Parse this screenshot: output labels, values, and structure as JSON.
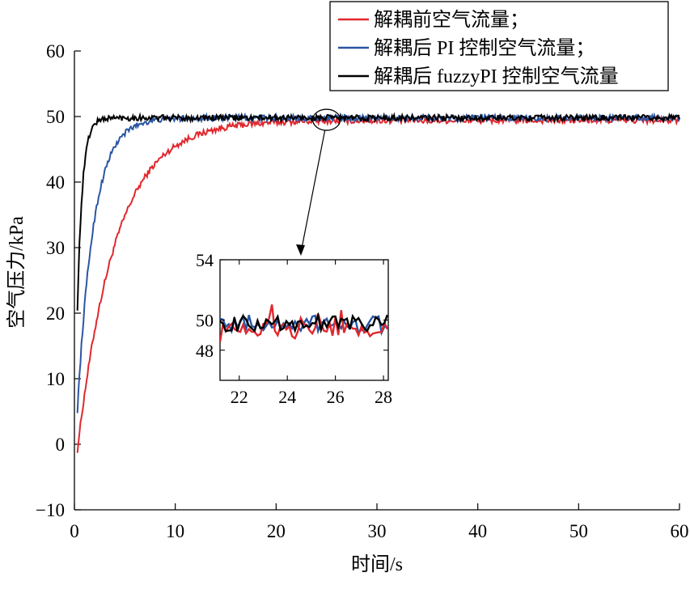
{
  "chart_data": [
    {
      "type": "line",
      "xlabel": "时间/s",
      "ylabel": "空气压力/kPa",
      "xlim": [
        0,
        60
      ],
      "ylim": [
        -10,
        60
      ],
      "xticks": [
        "0",
        "10",
        "20",
        "30",
        "40",
        "50",
        "60"
      ],
      "yticks": [
        "−10",
        "0",
        "10",
        "20",
        "30",
        "40",
        "50",
        "60"
      ],
      "grid": false,
      "legend_position": "top-right",
      "series": [
        {
          "name": "解耦前空气流量；",
          "color": "#e0282e",
          "setpoint": 49.4,
          "start": -5,
          "tau": 3.8,
          "noise": 0.45
        },
        {
          "name": "解耦后 PI 控制空气流量；",
          "color": "#2a56a3",
          "setpoint": 49.8,
          "start": -4,
          "tau": 1.6,
          "noise": 0.45
        },
        {
          "name": "解耦后 fuzzyPI 控制空气流量",
          "color": "#000000",
          "setpoint": 49.8,
          "start": -3,
          "tau": 0.5,
          "noise": 0.45
        }
      ],
      "annotation": {
        "x": 25,
        "y": 49.5,
        "label": "zoom region"
      }
    },
    {
      "type": "line",
      "inset": true,
      "xlim": [
        21.2,
        28.2
      ],
      "ylim": [
        46,
        54
      ],
      "xticks": [
        "22",
        "24",
        "26",
        "28"
      ],
      "yticks": [
        "48",
        "50",
        "54"
      ],
      "grid": false,
      "series_ref": "same as main chart"
    }
  ]
}
